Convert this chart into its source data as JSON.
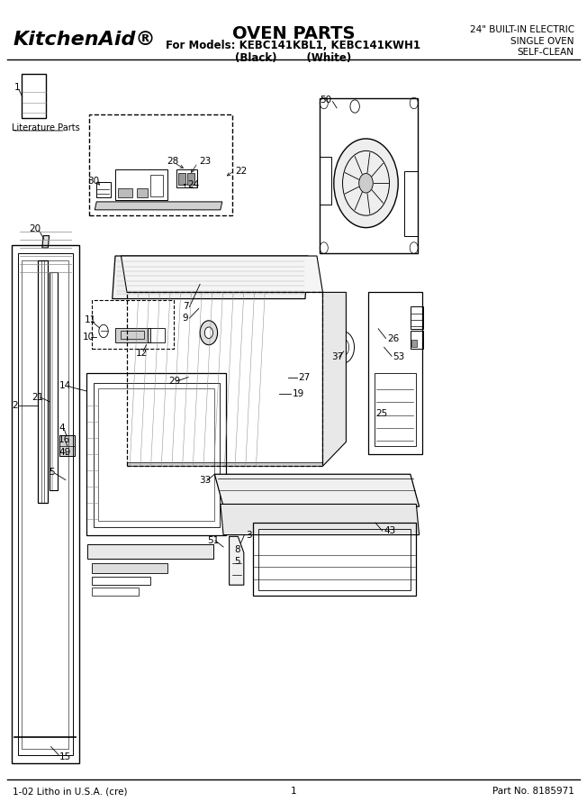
{
  "title": "OVEN PARTS",
  "subtitle_line1": "For Models: KEBC141KBL1, KEBC141KWH1",
  "subtitle_line2": "(Black)        (White)",
  "brand": "KitchenAid®",
  "top_right_line1": "24\" BUILT-IN ELECTRIC",
  "top_right_line2": "SINGLE OVEN",
  "top_right_line3": "SELF-CLEAN",
  "footer_left": "1-02 Litho in U.S.A. (cre)",
  "footer_center": "1",
  "footer_right": "Part No. 8185971",
  "bg_color": "#ffffff",
  "line_color": "#000000"
}
